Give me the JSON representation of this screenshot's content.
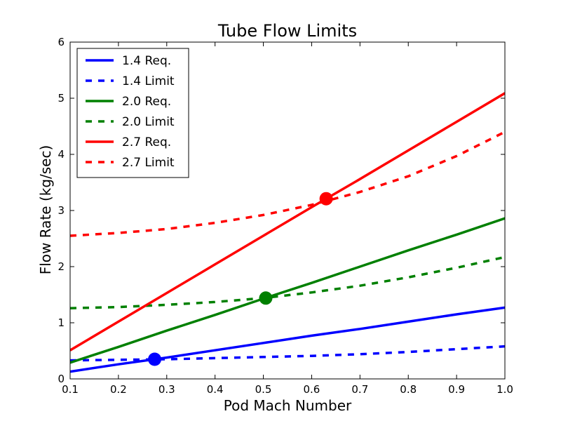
{
  "chart_data": {
    "type": "line",
    "title": "Tube Flow Limits",
    "xlabel": "Pod Mach Number",
    "ylabel": "Flow Rate (kg/sec)",
    "xlim": [
      0.1,
      1.0
    ],
    "ylim": [
      0,
      6
    ],
    "xticks": [
      "0.1",
      "0.2",
      "0.3",
      "0.4",
      "0.5",
      "0.6",
      "0.7",
      "0.8",
      "0.9",
      "1.0"
    ],
    "yticks": [
      "0",
      "1",
      "2",
      "3",
      "4",
      "5",
      "6"
    ],
    "grid": false,
    "legend_position": "top-left",
    "x": [
      0.1,
      0.2,
      0.3,
      0.4,
      0.5,
      0.6,
      0.7,
      0.8,
      0.9,
      1.0
    ],
    "series": [
      {
        "name": "1.4 Req.",
        "style": "solid",
        "color": "#0000ff",
        "values": [
          0.13,
          0.26,
          0.38,
          0.51,
          0.64,
          0.77,
          0.89,
          1.02,
          1.15,
          1.27
        ]
      },
      {
        "name": "1.4 Limit",
        "style": "dashed",
        "color": "#0000ff",
        "values": [
          0.33,
          0.34,
          0.35,
          0.37,
          0.39,
          0.41,
          0.44,
          0.48,
          0.53,
          0.58
        ]
      },
      {
        "name": "2.0 Req.",
        "style": "solid",
        "color": "#008000",
        "values": [
          0.29,
          0.57,
          0.86,
          1.14,
          1.43,
          1.71,
          2.0,
          2.29,
          2.57,
          2.86
        ]
      },
      {
        "name": "2.0 Limit",
        "style": "dashed",
        "color": "#008000",
        "values": [
          1.26,
          1.28,
          1.32,
          1.37,
          1.44,
          1.54,
          1.66,
          1.81,
          1.98,
          2.17
        ]
      },
      {
        "name": "2.7 Req.",
        "style": "solid",
        "color": "#ff0000",
        "values": [
          0.51,
          1.02,
          1.53,
          2.04,
          2.55,
          3.06,
          3.56,
          4.07,
          4.58,
          5.09
        ]
      },
      {
        "name": "2.7 Limit",
        "style": "dashed",
        "color": "#ff0000",
        "values": [
          2.55,
          2.6,
          2.67,
          2.78,
          2.92,
          3.1,
          3.33,
          3.61,
          3.97,
          4.4
        ]
      }
    ],
    "intersections": [
      {
        "series": "1.4",
        "x": 0.275,
        "y": 0.35,
        "color": "#0000ff"
      },
      {
        "series": "2.0",
        "x": 0.505,
        "y": 1.44,
        "color": "#008000"
      },
      {
        "series": "2.7",
        "x": 0.63,
        "y": 3.21,
        "color": "#ff0000"
      }
    ]
  }
}
